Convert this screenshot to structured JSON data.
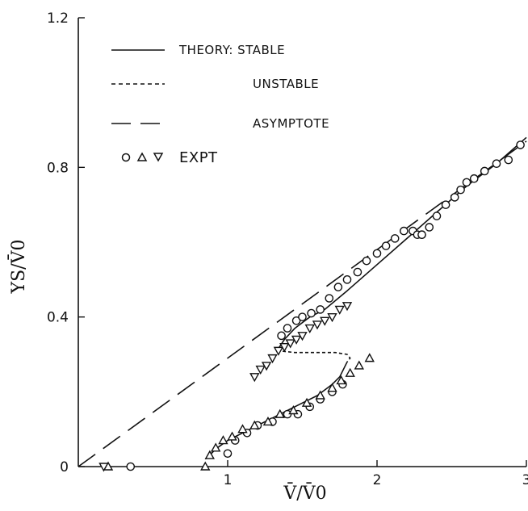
{
  "chart_data": {
    "type": "scatter",
    "title": "",
    "xlabel": "V̄/V̄0",
    "ylabel": "YS/V̄0",
    "xlim": [
      0,
      3
    ],
    "ylim": [
      0,
      1.2
    ],
    "x_ticks": [
      {
        "value": 1,
        "label": "1"
      },
      {
        "value": 2,
        "label": "2"
      },
      {
        "value": 3,
        "label": "3"
      }
    ],
    "y_ticks": [
      {
        "value": 0,
        "label": "0"
      },
      {
        "value": 0.4,
        "label": "0.4"
      },
      {
        "value": 0.8,
        "label": "0.8"
      },
      {
        "value": 1.2,
        "label": "1.2"
      }
    ],
    "grid": false,
    "legend_position": "top-left",
    "legend": [
      {
        "style": "solid",
        "label": "THEORY: STABLE"
      },
      {
        "style": "dotted",
        "label": "UNSTABLE"
      },
      {
        "style": "dashed",
        "label": "ASYMPTOTE"
      },
      {
        "style": "markers",
        "label": "EXPT"
      }
    ],
    "series": [
      {
        "name": "THEORY: STABLE",
        "kind": "line",
        "style": "solid",
        "segments": [
          {
            "x": [
              0.85,
              0.93,
              1.0,
              1.1,
              1.2,
              1.3,
              1.4,
              1.5,
              1.6,
              1.7,
              1.75,
              1.8
            ],
            "y": [
              0.02,
              0.05,
              0.07,
              0.09,
              0.11,
              0.13,
              0.15,
              0.17,
              0.19,
              0.22,
              0.24,
              0.28
            ]
          },
          {
            "x": [
              1.33,
              1.38,
              1.45,
              1.55,
              1.65,
              1.8,
              2.0,
              2.2,
              2.4,
              2.6,
              2.8,
              3.0
            ],
            "y": [
              0.31,
              0.34,
              0.37,
              0.4,
              0.42,
              0.47,
              0.54,
              0.61,
              0.68,
              0.75,
              0.81,
              0.88
            ]
          }
        ]
      },
      {
        "name": "UNSTABLE",
        "kind": "line",
        "style": "dotted",
        "x": [
          1.33,
          1.45,
          1.6,
          1.72,
          1.8,
          1.82,
          1.8
        ],
        "y": [
          0.31,
          0.305,
          0.305,
          0.305,
          0.3,
          0.29,
          0.28
        ]
      },
      {
        "name": "ASYMPTOTE",
        "kind": "line",
        "style": "dashed",
        "x": [
          0.0,
          3.0
        ],
        "y": [
          0.0,
          0.87
        ]
      },
      {
        "name": "EXPT",
        "kind": "markers",
        "circles": {
          "x": [
            0.35,
            1.0,
            1.05,
            1.13,
            1.2,
            1.3,
            1.4,
            1.47,
            1.55,
            1.62,
            1.7,
            1.77,
            1.36,
            1.4,
            1.46,
            1.5,
            1.56,
            1.62,
            1.68,
            1.74,
            1.8,
            1.87,
            1.93,
            2.0,
            2.06,
            2.12,
            2.18,
            2.24,
            2.3,
            2.27,
            2.3,
            2.35,
            2.4,
            2.46,
            2.52,
            2.56,
            2.6,
            2.65,
            2.72,
            2.8,
            2.88,
            2.96
          ],
          "y": [
            0.0,
            0.035,
            0.07,
            0.09,
            0.11,
            0.12,
            0.14,
            0.14,
            0.16,
            0.18,
            0.2,
            0.22,
            0.35,
            0.37,
            0.39,
            0.4,
            0.41,
            0.42,
            0.45,
            0.48,
            0.5,
            0.52,
            0.55,
            0.57,
            0.59,
            0.61,
            0.63,
            0.63,
            0.62,
            0.62,
            0.62,
            0.64,
            0.67,
            0.7,
            0.72,
            0.74,
            0.76,
            0.77,
            0.79,
            0.81,
            0.82,
            0.86
          ]
        },
        "triangles_up": {
          "x": [
            0.2,
            0.85,
            0.88,
            0.92,
            0.97,
            1.03,
            1.1,
            1.18,
            1.27,
            1.35,
            1.44,
            1.53,
            1.62,
            1.7,
            1.76,
            1.82,
            1.88,
            1.95
          ],
          "y": [
            0.0,
            0.0,
            0.03,
            0.05,
            0.07,
            0.08,
            0.1,
            0.11,
            0.12,
            0.14,
            0.15,
            0.17,
            0.19,
            0.21,
            0.23,
            0.25,
            0.27,
            0.29
          ]
        },
        "triangles_down": {
          "x": [
            0.17,
            1.18,
            1.22,
            1.26,
            1.3,
            1.34,
            1.38,
            1.42,
            1.46,
            1.5,
            1.55,
            1.6,
            1.65,
            1.7,
            1.75,
            1.8
          ],
          "y": [
            0.0,
            0.24,
            0.26,
            0.27,
            0.29,
            0.31,
            0.32,
            0.33,
            0.34,
            0.35,
            0.37,
            0.38,
            0.39,
            0.4,
            0.42,
            0.43
          ]
        }
      }
    ]
  }
}
